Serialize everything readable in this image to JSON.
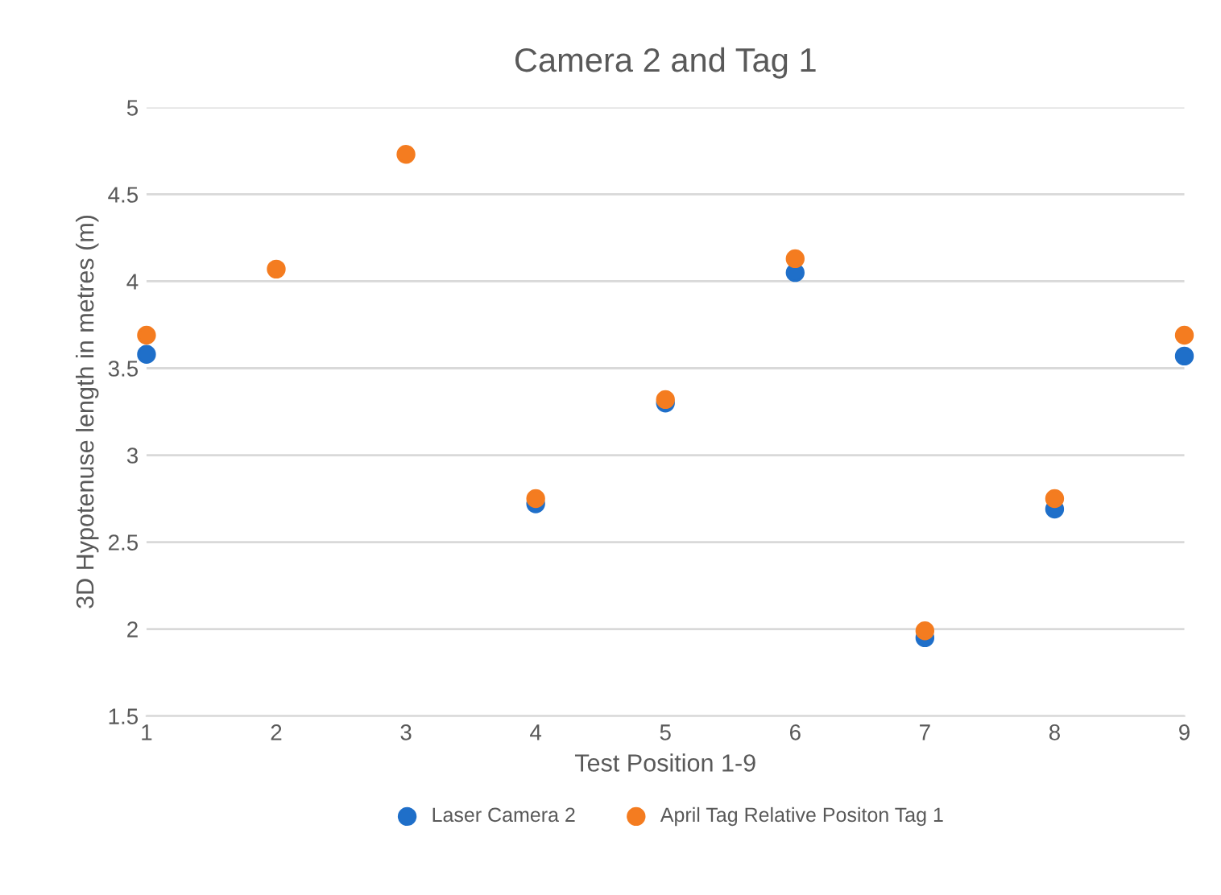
{
  "chart_data": {
    "type": "scatter",
    "title": "Camera 2 and Tag 1",
    "xlabel": "Test Position 1-9",
    "ylabel": "3D Hypotenuse length in metres (m)",
    "x": [
      1,
      2,
      3,
      4,
      5,
      6,
      7,
      8,
      9
    ],
    "series": [
      {
        "name": "Laser Camera 2",
        "color": "#1f6fc9",
        "values": [
          3.58,
          null,
          null,
          2.72,
          3.3,
          4.05,
          1.95,
          2.69,
          3.57
        ]
      },
      {
        "name": "April Tag Relative Positon Tag 1",
        "color": "#f47c20",
        "values": [
          3.69,
          4.07,
          4.73,
          2.75,
          3.32,
          4.13,
          1.99,
          2.75,
          3.69
        ]
      }
    ],
    "xlim": [
      1,
      9
    ],
    "xticks": [
      1,
      2,
      3,
      4,
      5,
      6,
      7,
      8,
      9
    ],
    "ylim": [
      1.5,
      5
    ],
    "yticks": [
      1.5,
      2,
      2.5,
      3,
      3.5,
      4,
      4.5,
      5
    ],
    "grid": "y",
    "legend": "bottom",
    "marker": "circle"
  }
}
